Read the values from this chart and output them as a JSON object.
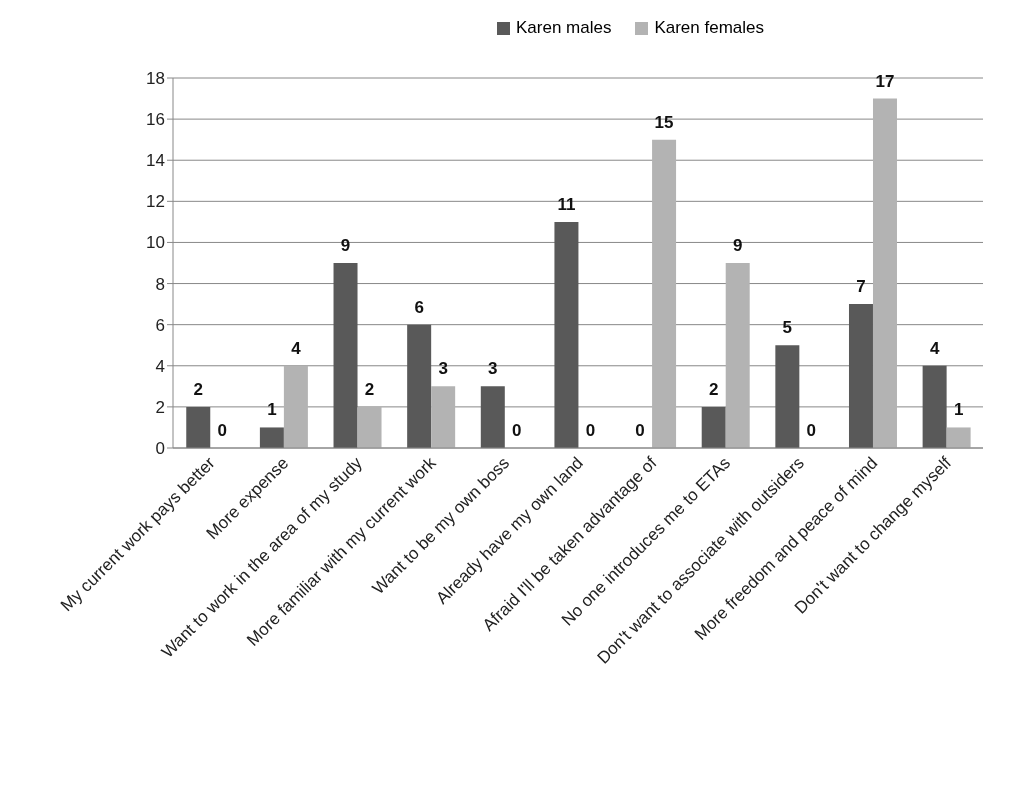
{
  "chart_data": {
    "type": "bar",
    "categories": [
      "My current work pays better",
      "More expense",
      "Want to work in the area of my study",
      "More familiar with my current work",
      "Want to be my own boss",
      "Already have my own land",
      "Afraid I'll be taken advantage of",
      "No one introduces me to ETAs",
      "Don't want to associate with outsiders",
      "More freedom and peace of mind",
      "Don't want to change myself"
    ],
    "series": [
      {
        "name": "Karen males",
        "color": "#595959",
        "values": [
          2,
          1,
          9,
          6,
          3,
          11,
          0,
          2,
          5,
          7,
          4
        ]
      },
      {
        "name": "Karen females",
        "color": "#b3b3b3",
        "values": [
          0,
          4,
          2,
          3,
          0,
          0,
          15,
          9,
          0,
          17,
          1
        ]
      }
    ],
    "ylim": [
      0,
      18
    ],
    "yticks": [
      0,
      2,
      4,
      6,
      8,
      10,
      12,
      14,
      16,
      18
    ],
    "grid": "y",
    "legend": "top",
    "data_labels": true
  }
}
